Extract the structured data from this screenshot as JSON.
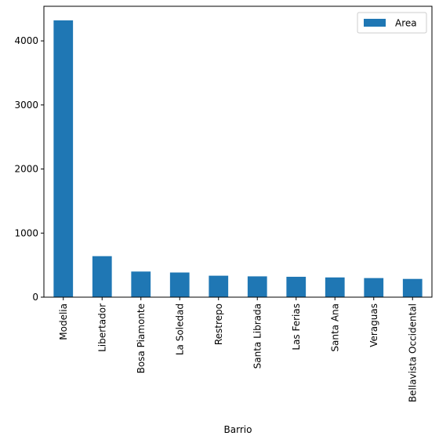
{
  "chart_data": {
    "type": "bar",
    "categories": [
      "Modelia",
      "Libertador",
      "Bosa Piamonte",
      "La Soledad",
      "Restrepo",
      "Santa Librada",
      "Las Ferias",
      "Santa Ana",
      "Veraguas",
      "Bellavista Occidental"
    ],
    "series": [
      {
        "name": "Area",
        "values": [
          4320,
          640,
          400,
          385,
          335,
          325,
          318,
          308,
          298,
          285
        ]
      }
    ],
    "xlabel": "Barrio",
    "ylabel": "",
    "ylim": [
      0,
      4540
    ],
    "yticks": [
      0,
      1000,
      2000,
      3000,
      4000
    ],
    "bar_color": "#1f77b4",
    "grid": false,
    "legend_position": "top-right"
  }
}
